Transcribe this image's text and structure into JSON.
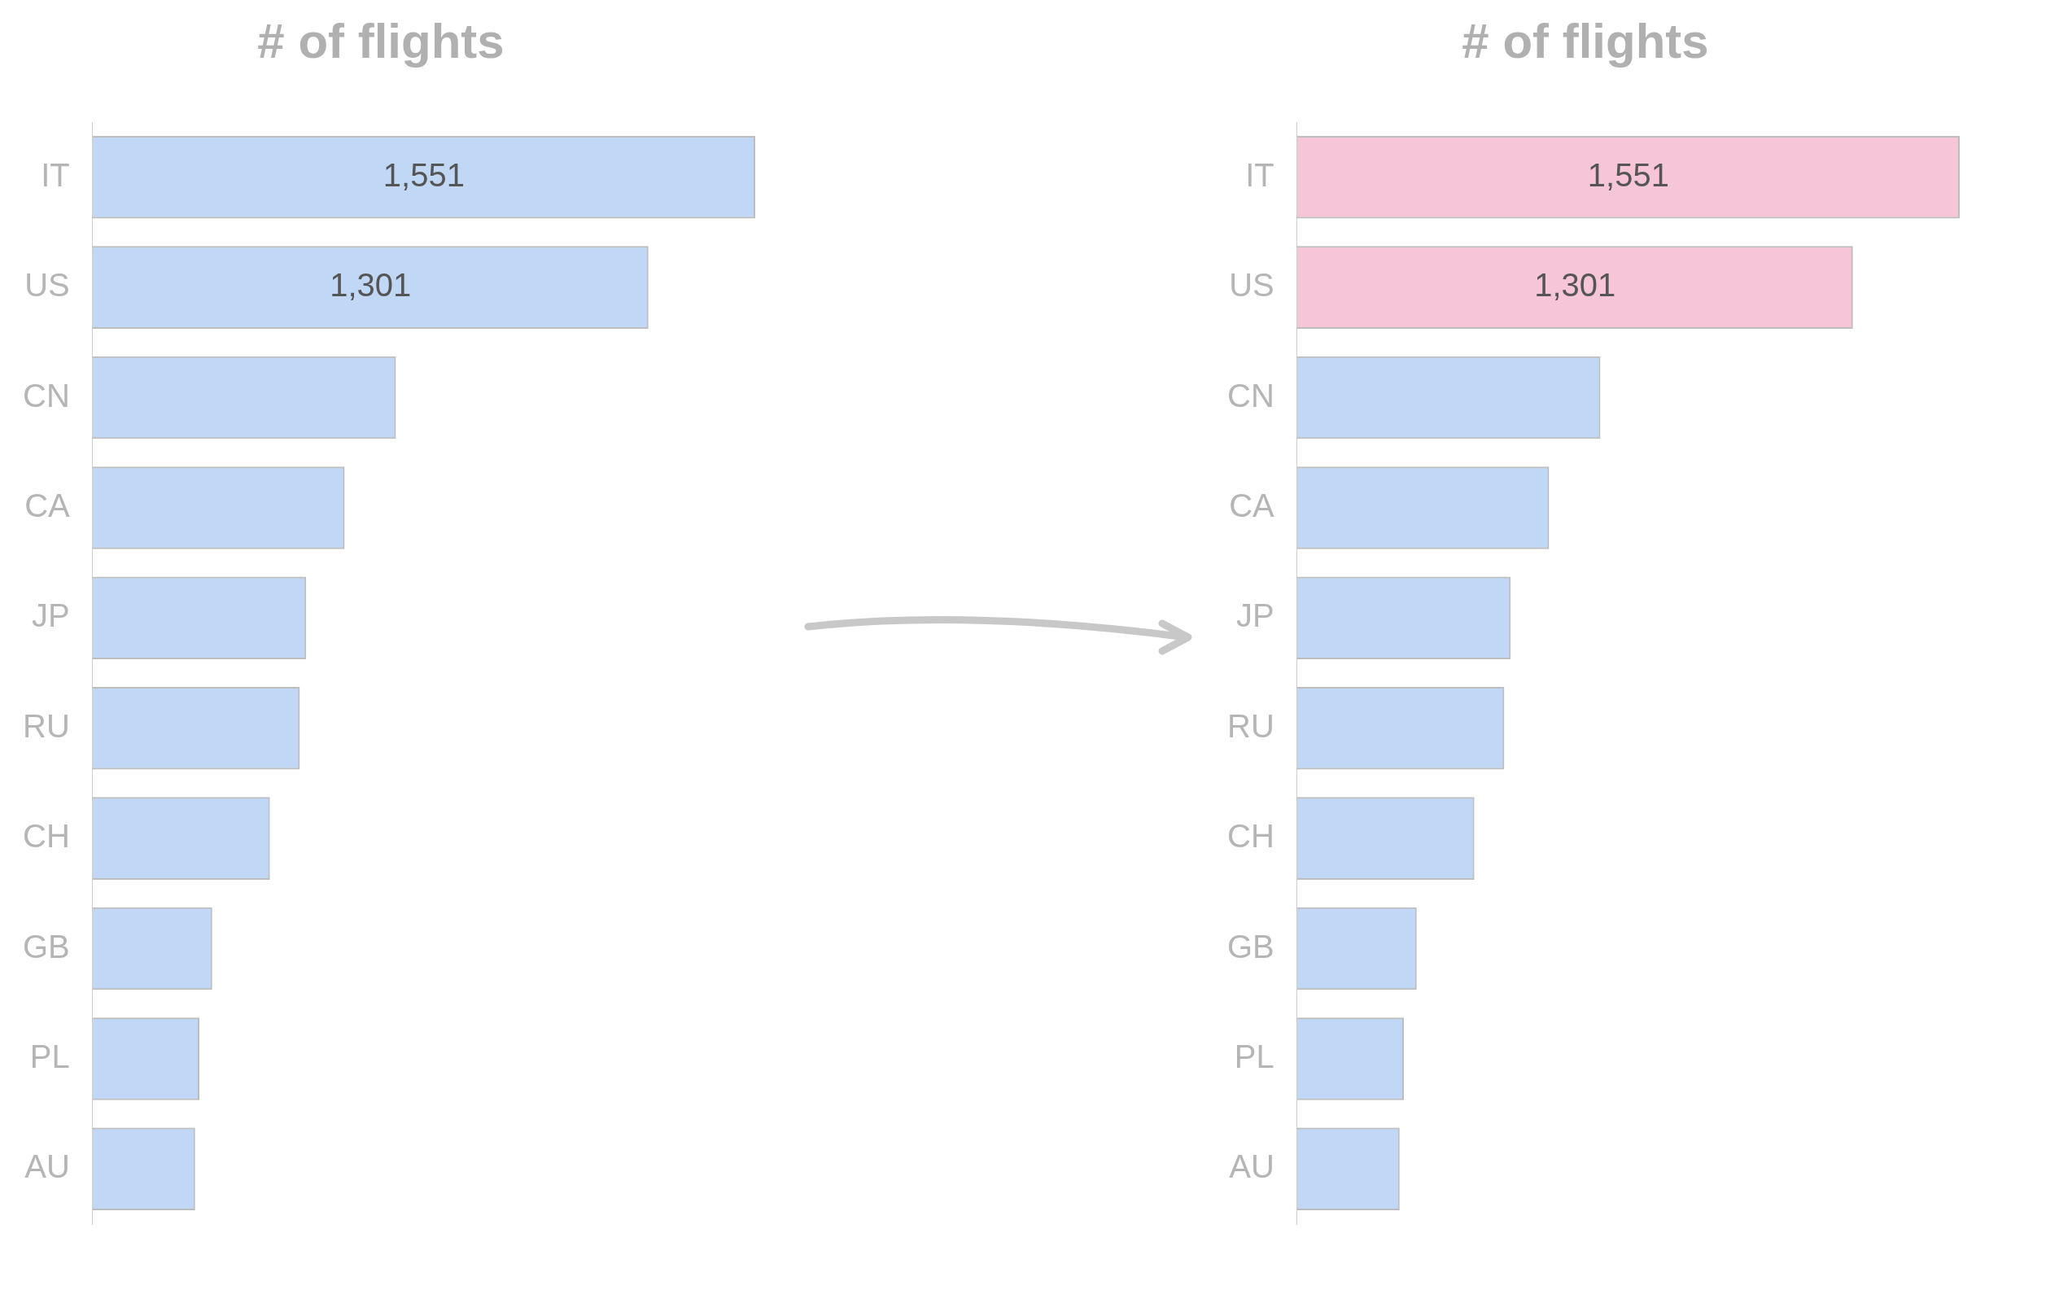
{
  "chart_data": [
    {
      "type": "bar",
      "orientation": "horizontal",
      "title": "# of flights",
      "categories": [
        "IT",
        "US",
        "CN",
        "CA",
        "JP",
        "RU",
        "CH",
        "GB",
        "PL",
        "AU"
      ],
      "values": [
        1551,
        1301,
        710,
        590,
        500,
        485,
        415,
        280,
        250,
        240
      ],
      "colors": [
        "#4a90e2",
        "#4a90e2",
        "#4a90e2",
        "#4a90e2",
        "#4a90e2",
        "#4a90e2",
        "#4a90e2",
        "#4a90e2",
        "#4a90e2",
        "#4a90e2"
      ],
      "value_labels": [
        "1,551",
        "1,301",
        null,
        null,
        null,
        null,
        null,
        null,
        null,
        null
      ]
    },
    {
      "type": "bar",
      "orientation": "horizontal",
      "title": "# of flights",
      "categories": [
        "IT",
        "US",
        "CN",
        "CA",
        "JP",
        "RU",
        "CH",
        "GB",
        "PL",
        "AU"
      ],
      "values": [
        1551,
        1301,
        710,
        590,
        500,
        485,
        415,
        280,
        250,
        240
      ],
      "colors": [
        "#e8588f",
        "#e8588f",
        "#4a90e2",
        "#4a90e2",
        "#4a90e2",
        "#4a90e2",
        "#4a90e2",
        "#4a90e2",
        "#4a90e2",
        "#4a90e2"
      ],
      "value_labels": [
        "1,551",
        "1,301",
        null,
        null,
        null,
        null,
        null,
        null,
        null,
        null
      ]
    }
  ]
}
